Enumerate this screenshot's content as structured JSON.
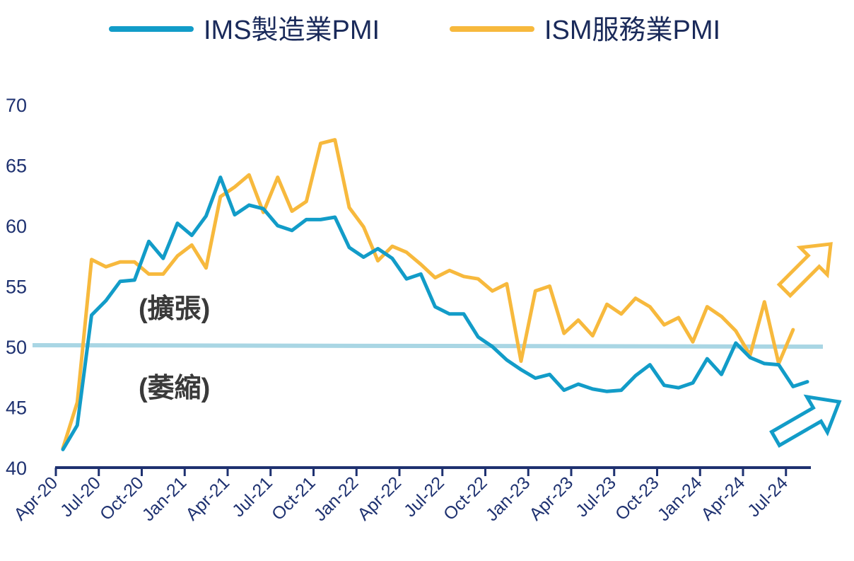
{
  "colors": {
    "manufacturing": "#129cc8",
    "services": "#f7b93d",
    "threshold": "#a9d6e4",
    "axis": "#1e3170",
    "text": "#1e3170"
  },
  "chart_data": {
    "type": "line",
    "title": "",
    "xlabel": "",
    "ylabel": "",
    "ylim": [
      40,
      70
    ],
    "yticks": [
      40,
      45,
      50,
      55,
      60,
      65,
      70
    ],
    "x_tick_labels": [
      "Apr-20",
      "Jul-20",
      "Oct-20",
      "Jan-21",
      "Apr-21",
      "Jul-21",
      "Oct-21",
      "Jan-22",
      "Apr-22",
      "Jul-22",
      "Oct-22",
      "Jan-23",
      "Apr-23",
      "Jul-23",
      "Oct-23",
      "Jan-24",
      "Apr-24",
      "Jul-24"
    ],
    "legend": {
      "position": "top",
      "manufacturing_label": "IMS製造業PMI",
      "services_label": "ISM服務業PMI"
    },
    "threshold": 50,
    "annotations": {
      "expansion": "(擴張)",
      "contraction": "(萎縮)"
    },
    "series": [
      {
        "name": "IMS製造業PMI",
        "start": "Apr-20",
        "values": [
          41.5,
          43.5,
          52.6,
          53.8,
          55.4,
          55.5,
          58.7,
          57.3,
          60.2,
          59.2,
          60.8,
          64.0,
          60.9,
          61.7,
          61.4,
          60.0,
          59.6,
          60.5,
          60.5,
          60.7,
          58.2,
          57.4,
          58.1,
          57.3,
          55.6,
          56.0,
          53.3,
          52.7,
          52.7,
          50.8,
          50.0,
          48.9,
          48.1,
          47.4,
          47.7,
          46.4,
          46.9,
          46.5,
          46.3,
          46.4,
          47.6,
          48.5,
          46.8,
          46.6,
          47.0,
          49.0,
          47.7,
          50.3,
          49.1,
          48.6,
          48.5,
          46.7,
          47.1
        ]
      },
      {
        "name": "ISM服務業PMI",
        "start": "Apr-20",
        "values": [
          41.6,
          45.4,
          57.2,
          56.6,
          57.0,
          57.0,
          56.0,
          56.0,
          57.5,
          58.4,
          56.5,
          62.4,
          63.2,
          64.2,
          61.1,
          64.0,
          61.2,
          62.0,
          66.8,
          67.1,
          61.5,
          59.9,
          57.1,
          58.3,
          57.8,
          56.8,
          55.7,
          56.3,
          55.8,
          55.6,
          54.6,
          55.2,
          48.8,
          54.6,
          55.0,
          51.1,
          52.2,
          50.9,
          53.5,
          52.7,
          54.0,
          53.3,
          51.8,
          52.4,
          50.4,
          53.3,
          52.5,
          51.3,
          49.3,
          53.7,
          48.6,
          51.4
        ]
      }
    ]
  }
}
